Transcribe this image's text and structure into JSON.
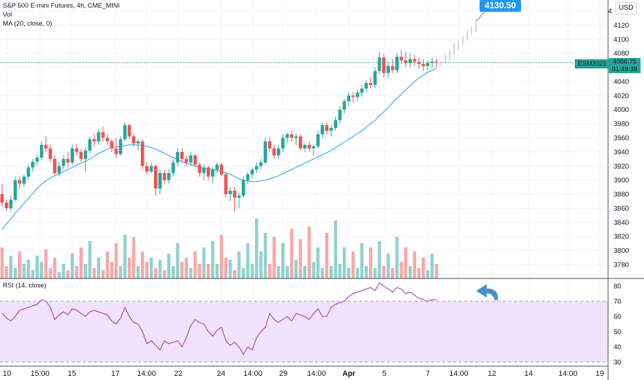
{
  "header": {
    "title": "S&P 500 E-mini Futures, 4h, CME_MINI",
    "vol_label": "Vol",
    "ma_label": "MA (20, close, 0)",
    "rsi_label": "RSI (14, close)",
    "currency_button": "USD"
  },
  "callout_price": "4130.50",
  "last_price": {
    "symbol": "ESM2021",
    "price": "4066.75",
    "countdown": "01:49:38"
  },
  "colors": {
    "up": "#26a69a",
    "down": "#ef5350",
    "ma": "#2196f3",
    "rsi": "#9c27b0",
    "rsi_band": "#f1e3fb",
    "callout": "#2196f3",
    "arrow": "#4a90c8",
    "projection": "#c8c8c8"
  },
  "chart_data": {
    "type": "candlestick",
    "title": "S&P 500 E-mini Futures, 4h, CME_MINI",
    "x_tick_labels": [
      "10",
      "15:00",
      "15",
      "17",
      "14:00",
      "22",
      "24",
      "14:00",
      "29",
      "14:00",
      "Apr",
      "5",
      "7",
      "14:00",
      "12",
      "14",
      "14:00",
      "19"
    ],
    "price_axis": {
      "ticks": [
        3780,
        3800,
        3820,
        3840,
        3860,
        3880,
        3900,
        3920,
        3940,
        3960,
        3980,
        4000,
        4020,
        4040,
        4060,
        4080,
        4100,
        4120,
        4140
      ],
      "range": [
        3770,
        4145
      ]
    },
    "rsi_axis": {
      "ticks": [
        30,
        40,
        50,
        60,
        70,
        80
      ],
      "overbought": 70,
      "oversold": 30
    },
    "candles_ohlc": [
      [
        3880,
        3895,
        3862,
        3868
      ],
      [
        3868,
        3872,
        3856,
        3860
      ],
      [
        3860,
        3878,
        3855,
        3872
      ],
      [
        3872,
        3905,
        3870,
        3900
      ],
      [
        3900,
        3905,
        3888,
        3895
      ],
      [
        3895,
        3908,
        3890,
        3905
      ],
      [
        3905,
        3922,
        3900,
        3918
      ],
      [
        3918,
        3930,
        3912,
        3926
      ],
      [
        3926,
        3936,
        3920,
        3932
      ],
      [
        3932,
        3955,
        3928,
        3950
      ],
      [
        3950,
        3962,
        3940,
        3945
      ],
      [
        3945,
        3950,
        3925,
        3930
      ],
      [
        3930,
        3935,
        3905,
        3910
      ],
      [
        3910,
        3925,
        3905,
        3920
      ],
      [
        3920,
        3935,
        3915,
        3930
      ],
      [
        3930,
        3940,
        3918,
        3925
      ],
      [
        3925,
        3950,
        3922,
        3945
      ],
      [
        3945,
        3952,
        3935,
        3940
      ],
      [
        3940,
        3945,
        3926,
        3930
      ],
      [
        3930,
        3946,
        3912,
        3942
      ],
      [
        3942,
        3962,
        3938,
        3958
      ],
      [
        3958,
        3965,
        3948,
        3955
      ],
      [
        3955,
        3972,
        3950,
        3968
      ],
      [
        3968,
        3976,
        3955,
        3960
      ],
      [
        3960,
        3965,
        3950,
        3955
      ],
      [
        3955,
        3958,
        3940,
        3945
      ],
      [
        3945,
        3960,
        3932,
        3937
      ],
      [
        3937,
        3962,
        3935,
        3958
      ],
      [
        3958,
        3982,
        3955,
        3978
      ],
      [
        3978,
        3980,
        3958,
        3962
      ],
      [
        3962,
        3965,
        3948,
        3952
      ],
      [
        3952,
        3958,
        3942,
        3955
      ],
      [
        3955,
        3958,
        3915,
        3920
      ],
      [
        3920,
        3925,
        3908,
        3912
      ],
      [
        3912,
        3925,
        3910,
        3920
      ],
      [
        3920,
        3922,
        3878,
        3888
      ],
      [
        3888,
        3915,
        3880,
        3910
      ],
      [
        3910,
        3915,
        3895,
        3900
      ],
      [
        3900,
        3915,
        3895,
        3910
      ],
      [
        3910,
        3930,
        3905,
        3925
      ],
      [
        3925,
        3945,
        3920,
        3940
      ],
      [
        3940,
        3945,
        3925,
        3930
      ],
      [
        3930,
        3935,
        3920,
        3925
      ],
      [
        3925,
        3940,
        3920,
        3935
      ],
      [
        3935,
        3937,
        3918,
        3922
      ],
      [
        3922,
        3925,
        3905,
        3910
      ],
      [
        3910,
        3922,
        3900,
        3918
      ],
      [
        3918,
        3920,
        3900,
        3905
      ],
      [
        3905,
        3918,
        3895,
        3915
      ],
      [
        3915,
        3925,
        3910,
        3922
      ],
      [
        3922,
        3924,
        3905,
        3908
      ],
      [
        3908,
        3912,
        3875,
        3880
      ],
      [
        3880,
        3890,
        3870,
        3885
      ],
      [
        3885,
        3890,
        3855,
        3875
      ],
      [
        3875,
        3882,
        3860,
        3878
      ],
      [
        3878,
        3905,
        3875,
        3900
      ],
      [
        3900,
        3912,
        3895,
        3908
      ],
      [
        3908,
        3918,
        3902,
        3915
      ],
      [
        3915,
        3925,
        3910,
        3920
      ],
      [
        3920,
        3930,
        3915,
        3925
      ],
      [
        3925,
        3960,
        3922,
        3955
      ],
      [
        3955,
        3962,
        3940,
        3945
      ],
      [
        3945,
        3950,
        3930,
        3935
      ],
      [
        3935,
        3950,
        3930,
        3945
      ],
      [
        3945,
        3965,
        3940,
        3960
      ],
      [
        3960,
        3968,
        3952,
        3965
      ],
      [
        3965,
        3970,
        3955,
        3960
      ],
      [
        3960,
        3966,
        3950,
        3962
      ],
      [
        3962,
        3965,
        3942,
        3945
      ],
      [
        3945,
        3952,
        3940,
        3950
      ],
      [
        3950,
        3955,
        3940,
        3945
      ],
      [
        3945,
        3950,
        3935,
        3948
      ],
      [
        3948,
        3970,
        3945,
        3965
      ],
      [
        3965,
        3982,
        3960,
        3978
      ],
      [
        3978,
        3982,
        3965,
        3970
      ],
      [
        3970,
        3978,
        3962,
        3974
      ],
      [
        3974,
        3990,
        3970,
        3985
      ],
      [
        3985,
        4005,
        3980,
        4000
      ],
      [
        4000,
        4015,
        3995,
        4012
      ],
      [
        4012,
        4025,
        4005,
        4020
      ],
      [
        4020,
        4025,
        4010,
        4018
      ],
      [
        4018,
        4028,
        4012,
        4024
      ],
      [
        4024,
        4035,
        4018,
        4030
      ],
      [
        4030,
        4042,
        4025,
        4038
      ],
      [
        4038,
        4045,
        4030,
        4035
      ],
      [
        4035,
        4060,
        4030,
        4055
      ],
      [
        4055,
        4082,
        4050,
        4074
      ],
      [
        4074,
        4080,
        4045,
        4052
      ],
      [
        4052,
        4068,
        4045,
        4062
      ],
      [
        4062,
        4072,
        4052,
        4056
      ],
      [
        4056,
        4080,
        4052,
        4075
      ],
      [
        4075,
        4085,
        4065,
        4070
      ],
      [
        4070,
        4082,
        4060,
        4066
      ],
      [
        4066,
        4080,
        4060,
        4072
      ],
      [
        4072,
        4078,
        4062,
        4068
      ],
      [
        4068,
        4074,
        4058,
        4065
      ],
      [
        4065,
        4072,
        4055,
        4062
      ],
      [
        4062,
        4070,
        4056,
        4066
      ],
      [
        4066,
        4074,
        4060,
        4068
      ],
      [
        4068,
        4072,
        4060,
        4066.75
      ]
    ],
    "projection_bars": [
      [
        4062,
        4068
      ],
      [
        4066,
        4078
      ],
      [
        4070,
        4085
      ],
      [
        4078,
        4094
      ],
      [
        4085,
        4098
      ],
      [
        4092,
        4104
      ],
      [
        4098,
        4112
      ],
      [
        4106,
        4118
      ],
      [
        4110,
        4128
      ]
    ],
    "ma20": [
      3830,
      3838,
      3845,
      3853,
      3860,
      3867,
      3874,
      3881,
      3888,
      3894,
      3899,
      3903,
      3906,
      3909,
      3912,
      3915,
      3918,
      3921,
      3924,
      3927,
      3930,
      3934,
      3938,
      3941,
      3944,
      3946,
      3947,
      3948,
      3949,
      3950,
      3950,
      3950,
      3949,
      3948,
      3946,
      3944,
      3941,
      3938,
      3935,
      3932,
      3929,
      3926,
      3924,
      3922,
      3920,
      3918,
      3917,
      3916,
      3915,
      3914,
      3912,
      3910,
      3908,
      3905,
      3902,
      3900,
      3899,
      3898,
      3898,
      3899,
      3900,
      3902,
      3904,
      3906,
      3909,
      3912,
      3915,
      3918,
      3921,
      3924,
      3927,
      3930,
      3933,
      3936,
      3939,
      3942,
      3946,
      3950,
      3954,
      3958,
      3962,
      3966,
      3970,
      3975,
      3980,
      3985,
      3991,
      3997,
      4003,
      4010,
      4016,
      4022,
      4028,
      4034,
      4040,
      4045,
      4049,
      4053,
      4056,
      4059
    ],
    "volume": [
      30,
      12,
      22,
      10,
      26,
      14,
      18,
      8,
      22,
      16,
      28,
      10,
      20,
      6,
      14,
      8,
      24,
      12,
      30,
      14,
      36,
      10,
      20,
      8,
      26,
      16,
      34,
      12,
      42,
      20,
      40,
      12,
      26,
      16,
      20,
      10,
      18,
      8,
      24,
      12,
      34,
      16,
      20,
      10,
      26,
      14,
      30,
      14,
      36,
      14,
      42,
      20,
      18,
      8,
      26,
      10,
      34,
      14,
      58,
      26,
      44,
      14,
      40,
      12,
      34,
      12,
      48,
      18,
      38,
      12,
      50,
      16,
      30,
      10,
      44,
      12,
      56,
      14,
      30,
      10,
      26,
      10,
      34,
      12,
      30,
      10,
      36,
      12,
      24,
      10,
      40,
      16,
      30,
      12,
      26,
      10,
      20,
      8,
      24,
      14
    ],
    "rsi": [
      62,
      59,
      57,
      60,
      64,
      65,
      66,
      67,
      68,
      71,
      70,
      66,
      58,
      61,
      63,
      61,
      65,
      64,
      62,
      60,
      63,
      64,
      63,
      62,
      61,
      57,
      55,
      59,
      66,
      60,
      56,
      55,
      50,
      42,
      44,
      41,
      38,
      44,
      42,
      43,
      44,
      40,
      46,
      54,
      58,
      56,
      55,
      50,
      47,
      51,
      53,
      44,
      41,
      43,
      40,
      35,
      40,
      38,
      46,
      50,
      53,
      62,
      58,
      56,
      58,
      60,
      57,
      62,
      61,
      60,
      58,
      62,
      65,
      60,
      60,
      66,
      68,
      69,
      70,
      73,
      75,
      76,
      77,
      78,
      79,
      77,
      82,
      80,
      78,
      76,
      79,
      78,
      75,
      76,
      74,
      72,
      71,
      70,
      71,
      71
    ]
  }
}
